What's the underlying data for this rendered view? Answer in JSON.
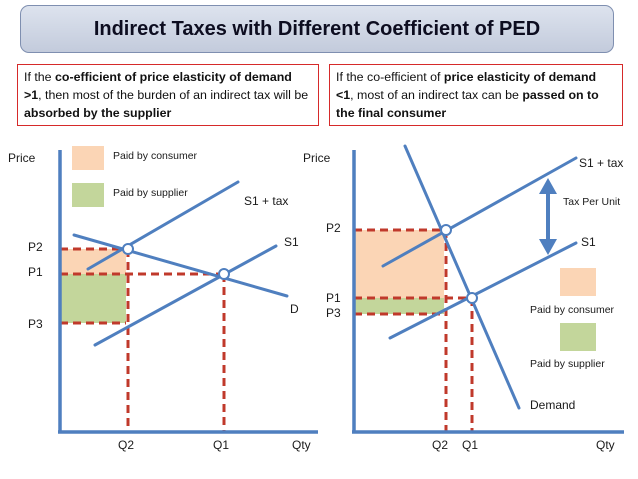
{
  "title": "Indirect Taxes with Different Coefficient of PED",
  "notes": {
    "left": [
      {
        "t": "If the ",
        "b": false
      },
      {
        "t": "co-efficient of price elasticity of demand >1",
        "b": true
      },
      {
        "t": ", then most of the burden of an indirect tax will be ",
        "b": false
      },
      {
        "t": "absorbed by the supplier",
        "b": true
      }
    ],
    "right": [
      {
        "t": "If the co-efficient of ",
        "b": false
      },
      {
        "t": "price elasticity of demand <1",
        "b": true
      },
      {
        "t": ", most of an indirect tax can be ",
        "b": false
      },
      {
        "t": "passed on to the final consumer",
        "b": true
      }
    ]
  },
  "left_chart": {
    "y_axis_label": "Price",
    "x_axis_label": "Qty",
    "price_labels": {
      "p2": "P2",
      "p1": "P1",
      "p3": "P3"
    },
    "quantity_labels": {
      "q2": "Q2",
      "q1": "Q1"
    },
    "curve_labels": {
      "s1_tax": "S1 + tax",
      "s1": "S1",
      "demand": "D"
    },
    "legend": {
      "consumer": "Paid by consumer",
      "supplier": "Paid by supplier"
    }
  },
  "right_chart": {
    "y_axis_label": "Price",
    "x_axis_label": "Qty",
    "price_labels": {
      "p2": "P2",
      "p1": "P1",
      "p3": "P3"
    },
    "quantity_labels": {
      "q2": "Q2",
      "q1": "Q1"
    },
    "curve_labels": {
      "s1_tax": "S1 + tax",
      "s1": "S1",
      "demand": "Demand"
    },
    "tax_label": "Tax Per Unit",
    "legend": {
      "consumer": "Paid by consumer",
      "supplier": "Paid by supplier"
    }
  },
  "colors": {
    "curve": "#4f7fbf",
    "dashed": "#c0392b",
    "consumer_fill": "#fbd5b5",
    "supplier_fill": "#c3d69b",
    "note_border": "#d62a2a"
  }
}
